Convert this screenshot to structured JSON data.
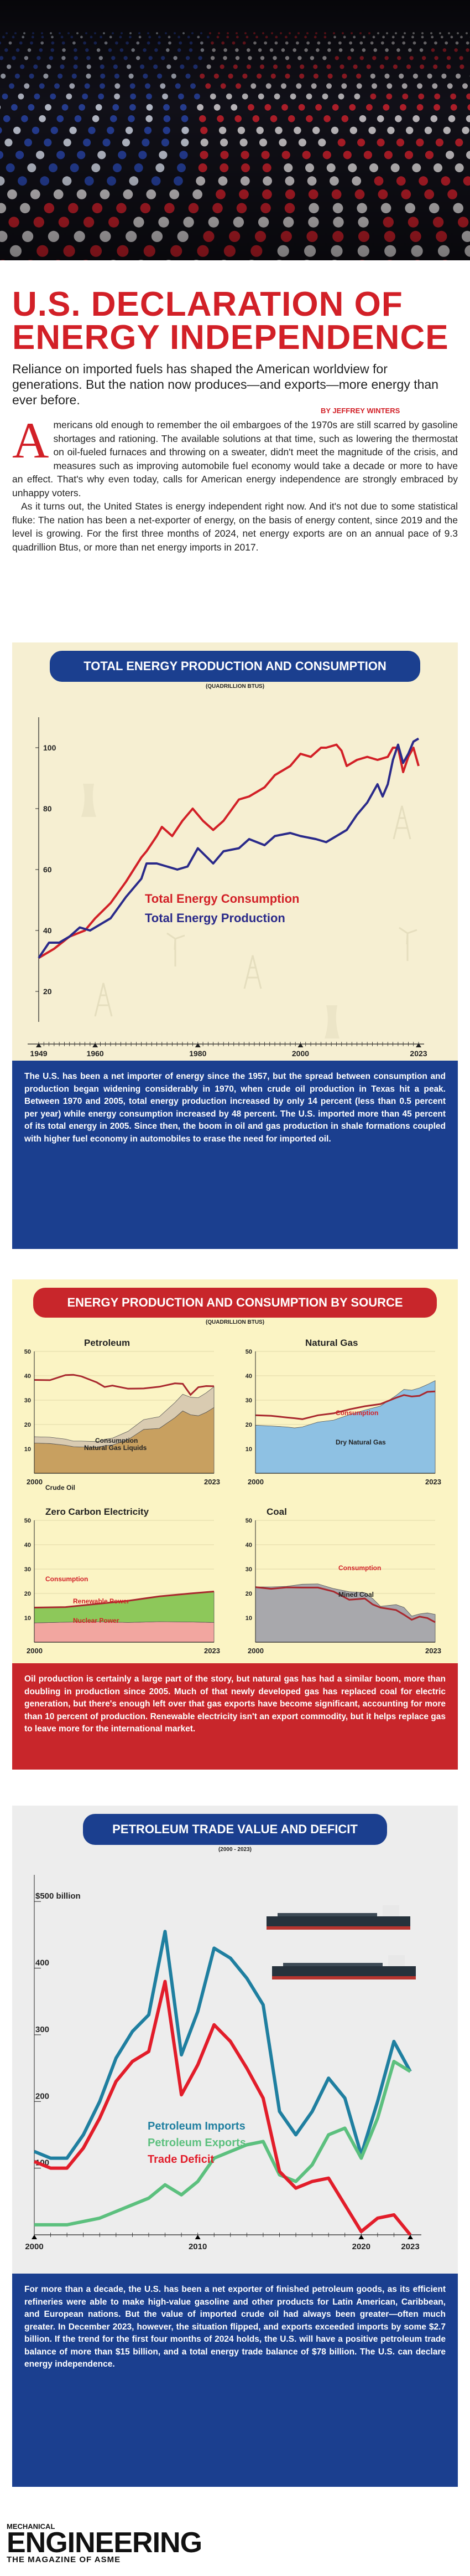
{
  "article": {
    "title_line1": "U.S. DECLARATION OF",
    "title_line2": "ENERGY INDEPENDENCE",
    "subtitle": "Reliance on imported fuels has shaped the American worldview for generations. But the nation now produces—and exports—more energy than ever before.",
    "byline": "BY JEFFREY WINTERS",
    "dropcap": "A",
    "intro_p1": "mericans old enough to remember the oil embargoes of the 1970s are still scarred by gasoline shortages and rationing. The available solutions at that time, such as lowering the thermostat on oil-fueled furnaces and throwing on a sweater, didn't meet the magnitude of the crisis, and measures such as improving automobile fuel economy would take a decade or more to have an effect. That's why even today, calls for American energy independence are strongly embraced by unhappy voters.",
    "intro_p2": "As it turns out, the United States is energy independent right now. And it's not due to some statistical fluke: The nation has been a net-exporter of energy, on the basis of energy content, since 2019 and the level is growing. For the first three months of 2024, net energy exports are on an annual pace of 9.3 quadrillion Btus, or more than net energy imports in 2017."
  },
  "section1": {
    "title": "TOTAL ENERGY PRODUCTION AND CONSUMPTION",
    "unit": "(QUADRILLION BTUS)",
    "caption": "The U.S. has been a net importer of energy since the 1957, but the spread between consumption and production began widening considerably in 1970, when crude oil production in Texas hit a peak. Between 1970 and 2005, total energy production increased by only 14 percent (less than 0.5 percent per year) while energy consumption increased by 48 percent. The U.S. imported more than 45 percent of its total energy in 2005. Since then, the boom in oil and gas production in shale formations coupled with higher fuel economy in automobiles to erase the need for imported oil."
  },
  "section2": {
    "title": "ENERGY PRODUCTION AND CONSUMPTION BY SOURCE",
    "unit": "(QUADRILLION BTUS)",
    "caption": "Oil production is certainly a large part of the story, but natural gas has had a similar boom, more than doubling in production since 2005. Much of that newly developed gas has replaced coal for electric generation, but there's enough left over that gas exports have become significant, accounting for more than 10 percent of production. Renewable electricity isn't an export commodity, but it helps replace gas to leave more for the international market."
  },
  "section3": {
    "title": "PETROLEUM TRADE VALUE AND DEFICIT",
    "unit": "(2000 - 2023)",
    "caption": "For more than a decade, the U.S. has been a net exporter of finished petroleum goods, as its efficient refineries were able to make high-value gasoline and other products for Latin American, Caribbean, and European nations. But the value of imported crude oil had always been greater—often much greater. In December 2023, however, the situation flipped, and exports exceeded imports by some $2.7 billion. If the trend for the first four months of 2024 holds, the U.S. will have a positive petroleum trade balance of more than $15 billion, and a total energy trade balance of $78 billion. The U.S. can declare energy independence."
  },
  "footer": {
    "logo_top": "MECHANICAL",
    "logo_main": "ENGINEERING",
    "logo_tag": "THE MAGAZINE OF ASME"
  },
  "colors": {
    "red": "#d22027",
    "blue": "#1b3f8f",
    "navy_line": "#2a2a8a",
    "cream": "#f6efd2",
    "oil_fill": "#c8a060",
    "gas_fill": "#8ec1e3",
    "nuclear_fill": "#f2a6a0",
    "renewable_fill": "#8dc85a",
    "coal_fill": "#a8a8ac",
    "imports": "#1f7fa0",
    "exports": "#5cc07e",
    "deficit": "#e21d2a"
  },
  "chart_data": [
    {
      "id": "total",
      "type": "line",
      "title": "TOTAL ENERGY PRODUCTION AND CONSUMPTION",
      "ylabel": "Quadrillion Btus",
      "ylim": [
        10,
        110
      ],
      "yticks": [
        20,
        40,
        60,
        80,
        100
      ],
      "xlim": [
        1949,
        2023
      ],
      "xtick_labels": [
        "1949",
        "1960",
        "1980",
        "2000",
        "2023"
      ],
      "xtick_values": [
        1949,
        1960,
        1980,
        2000,
        2023
      ],
      "series": [
        {
          "name": "Total Energy Consumption",
          "x": [
            1949,
            1952,
            1955,
            1958,
            1960,
            1963,
            1966,
            1969,
            1970,
            1972,
            1973,
            1975,
            1977,
            1979,
            1981,
            1983,
            1985,
            1988,
            1990,
            1993,
            1995,
            1998,
            2000,
            2002,
            2004,
            2005,
            2007,
            2008,
            2009,
            2011,
            2013,
            2015,
            2017,
            2018,
            2019,
            2020,
            2021,
            2022,
            2023
          ],
          "values": [
            31,
            34,
            38,
            40,
            44,
            49,
            56,
            64,
            66,
            71,
            74,
            71,
            76,
            80,
            76,
            73,
            76,
            83,
            84,
            87,
            91,
            94,
            98,
            97,
            100,
            100,
            101,
            99,
            94,
            96,
            97,
            96,
            97,
            100,
            100,
            92,
            97,
            100,
            94
          ]
        },
        {
          "name": "Total Energy Production",
          "x": [
            1949,
            1951,
            1953,
            1955,
            1957,
            1959,
            1960,
            1963,
            1966,
            1969,
            1970,
            1972,
            1974,
            1976,
            1978,
            1980,
            1983,
            1985,
            1988,
            1990,
            1993,
            1995,
            1998,
            2000,
            2003,
            2005,
            2007,
            2009,
            2011,
            2013,
            2015,
            2016,
            2017,
            2018,
            2019,
            2020,
            2021,
            2022,
            2023
          ],
          "values": [
            31,
            36,
            36,
            38,
            41,
            40,
            41,
            44,
            51,
            57,
            62,
            62,
            61,
            60,
            61,
            67,
            62,
            66,
            67,
            70,
            68,
            71,
            72,
            71,
            70,
            69,
            71,
            73,
            78,
            82,
            88,
            84,
            88,
            96,
            101,
            95,
            98,
            102,
            103
          ]
        }
      ],
      "annotations": [
        "Total Energy Consumption",
        "Total Energy Production"
      ]
    },
    {
      "id": "petroleum",
      "type": "area",
      "title": "Petroleum",
      "ylim": [
        0,
        50
      ],
      "yticks": [
        10,
        20,
        30,
        40,
        50
      ],
      "xtick_labels": [
        "2000",
        "2023"
      ],
      "x": [
        2000,
        2002,
        2004,
        2005,
        2006,
        2008,
        2009,
        2010,
        2012,
        2014,
        2016,
        2018,
        2019,
        2020,
        2021,
        2022,
        2023
      ],
      "series": [
        {
          "name": "Crude Oil",
          "values": [
            12.4,
            12.2,
            11.5,
            10.9,
            10.8,
            10.6,
            11.3,
            11.6,
            13.8,
            18.0,
            18.4,
            22.8,
            25.6,
            24.0,
            23.6,
            25.0,
            27.0
          ]
        },
        {
          "name": "Natural Gas Liquids",
          "values": [
            2.6,
            2.6,
            2.5,
            2.3,
            2.4,
            2.4,
            2.6,
            2.8,
            3.4,
            4.0,
            4.8,
            6.2,
            6.8,
            7.2,
            7.4,
            8.0,
            8.5
          ]
        },
        {
          "name": "Consumption",
          "values": [
            38.3,
            38.2,
            40.3,
            40.4,
            39.8,
            37.3,
            35.4,
            36.0,
            34.7,
            34.8,
            35.5,
            36.9,
            36.7,
            32.2,
            35.3,
            35.8,
            35.7
          ]
        }
      ],
      "labels": [
        "Consumption",
        "Crude Oil",
        "Natural Gas Liquids"
      ]
    },
    {
      "id": "natural_gas",
      "type": "area",
      "title": "Natural Gas",
      "ylim": [
        0,
        50
      ],
      "yticks": [
        10,
        20,
        30,
        40,
        50
      ],
      "xtick_labels": [
        "2000",
        "2023"
      ],
      "x": [
        2000,
        2002,
        2004,
        2005,
        2006,
        2008,
        2010,
        2012,
        2014,
        2016,
        2018,
        2019,
        2020,
        2021,
        2022,
        2023
      ],
      "series": [
        {
          "name": "Dry Natural Gas",
          "values": [
            19.7,
            19.4,
            19.0,
            18.6,
            19.0,
            21.0,
            21.8,
            24.0,
            25.9,
            27.6,
            31.9,
            34.4,
            34.1,
            35.0,
            36.4,
            38.0
          ]
        },
        {
          "name": "Consumption",
          "values": [
            23.8,
            23.6,
            22.9,
            22.6,
            22.2,
            23.8,
            24.6,
            26.2,
            27.5,
            28.4,
            31.0,
            32.1,
            31.5,
            31.8,
            33.4,
            33.6
          ]
        }
      ],
      "labels": [
        "Consumption",
        "Dry Natural Gas"
      ]
    },
    {
      "id": "zero_carbon",
      "type": "area",
      "title": "Zero Carbon Electricity",
      "ylim": [
        0,
        50
      ],
      "yticks": [
        10,
        20,
        30,
        40,
        50
      ],
      "xtick_labels": [
        "2000",
        "2023"
      ],
      "x": [
        2000,
        2004,
        2008,
        2012,
        2016,
        2020,
        2023
      ],
      "series": [
        {
          "name": "Nuclear Power",
          "values": [
            7.9,
            8.2,
            8.4,
            8.1,
            8.4,
            8.3,
            8.1
          ]
        },
        {
          "name": "Renewable Power",
          "values": [
            6.1,
            6.0,
            7.1,
            8.8,
            10.3,
            11.6,
            12.6
          ]
        },
        {
          "name": "Consumption",
          "values": [
            14.2,
            14.4,
            15.7,
            17.0,
            18.8,
            20.0,
            20.8
          ]
        }
      ],
      "labels": [
        "Consumption",
        "Renewable Power",
        "Nuclear Power"
      ]
    },
    {
      "id": "coal",
      "type": "area",
      "title": "Coal",
      "ylim": [
        0,
        50
      ],
      "yticks": [
        10,
        20,
        30,
        40,
        50
      ],
      "xtick_labels": [
        "2000",
        "2023"
      ],
      "x": [
        2000,
        2002,
        2004,
        2006,
        2008,
        2010,
        2012,
        2014,
        2015,
        2016,
        2018,
        2019,
        2020,
        2021,
        2022,
        2023
      ],
      "series": [
        {
          "name": "Mined Coal",
          "values": [
            22.7,
            22.7,
            22.9,
            23.8,
            23.9,
            22.0,
            20.7,
            20.3,
            17.9,
            14.7,
            15.4,
            14.3,
            10.7,
            11.6,
            12.0,
            11.4
          ]
        },
        {
          "name": "Consumption",
          "values": [
            22.6,
            21.9,
            22.5,
            22.4,
            22.4,
            20.8,
            17.4,
            17.9,
            15.5,
            14.2,
            13.2,
            11.3,
            9.2,
            10.5,
            9.9,
            8.2
          ]
        }
      ],
      "labels": [
        "Consumption",
        "Mined Coal"
      ]
    },
    {
      "id": "petroleum_trade",
      "type": "line",
      "title": "PETROLEUM TRADE VALUE AND DEFICIT",
      "ylabel": "$ billion",
      "ylim": [
        0,
        540
      ],
      "yticks": [
        100,
        200,
        300,
        400,
        500
      ],
      "ytick_labels": [
        "100",
        "200",
        "300",
        "400",
        "$500 billion"
      ],
      "xlim": [
        2000,
        2023
      ],
      "xtick_labels": [
        "2000",
        "2010",
        "2020",
        "2023"
      ],
      "xtick_values": [
        2000,
        2010,
        2020,
        2023
      ],
      "x": [
        2000,
        2001,
        2002,
        2003,
        2004,
        2005,
        2006,
        2007,
        2008,
        2009,
        2010,
        2011,
        2012,
        2013,
        2014,
        2015,
        2016,
        2017,
        2018,
        2019,
        2020,
        2021,
        2022,
        2023
      ],
      "series": [
        {
          "name": "Petroleum Imports",
          "values": [
            125,
            115,
            115,
            150,
            200,
            265,
            305,
            330,
            455,
            270,
            335,
            430,
            415,
            385,
            345,
            185,
            150,
            185,
            235,
            205,
            120,
            200,
            290,
            245
          ]
        },
        {
          "name": "Petroleum Exports",
          "values": [
            15,
            15,
            15,
            20,
            25,
            35,
            45,
            55,
            75,
            60,
            80,
            115,
            125,
            135,
            140,
            90,
            80,
            105,
            150,
            160,
            115,
            175,
            260,
            245
          ]
        },
        {
          "name": "Trade Deficit",
          "values": [
            110,
            100,
            100,
            130,
            175,
            230,
            260,
            275,
            380,
            210,
            255,
            315,
            290,
            250,
            205,
            95,
            70,
            80,
            85,
            45,
            5,
            25,
            30,
            0
          ]
        }
      ],
      "legend": [
        "Petroleum Imports",
        "Petroleum Exports",
        "Trade Deficit"
      ]
    }
  ]
}
